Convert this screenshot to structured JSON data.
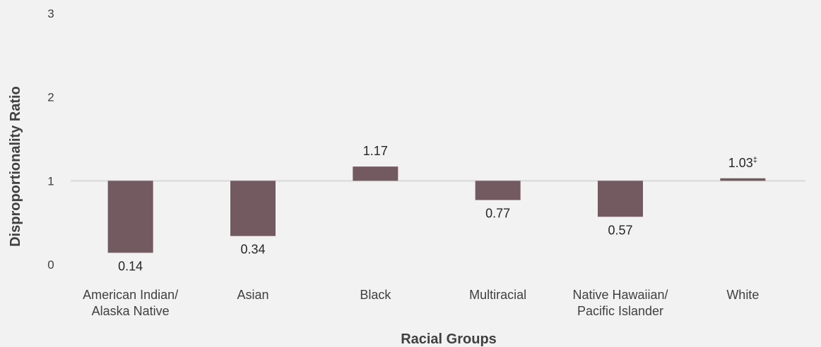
{
  "chart_data": {
    "type": "bar",
    "baseline": 1,
    "categories": [
      [
        "American Indian/",
        "Alaska Native"
      ],
      [
        "Asian"
      ],
      [
        "Black"
      ],
      [
        "Multiracial"
      ],
      [
        "Native Hawaiian/",
        "Pacific Islander"
      ],
      [
        "White"
      ]
    ],
    "values": [
      0.14,
      0.34,
      1.17,
      0.77,
      0.57,
      1.03
    ],
    "data_labels": [
      "0.14",
      "0.34",
      "1.17",
      "0.77",
      "0.57",
      "1.03"
    ],
    "label_footnotes": [
      "",
      "",
      "",
      "",
      "",
      "‡"
    ],
    "xlabel": "Racial Groups",
    "ylabel": "Disproportionality Ratio",
    "ylim": [
      0,
      3
    ],
    "yticks": [
      "0",
      "1",
      "2",
      "3"
    ],
    "grid": false,
    "legend": "none",
    "colors": {
      "bar": "#735960",
      "baseline": "#d9d9d9",
      "background": "#f2f2f2"
    }
  }
}
